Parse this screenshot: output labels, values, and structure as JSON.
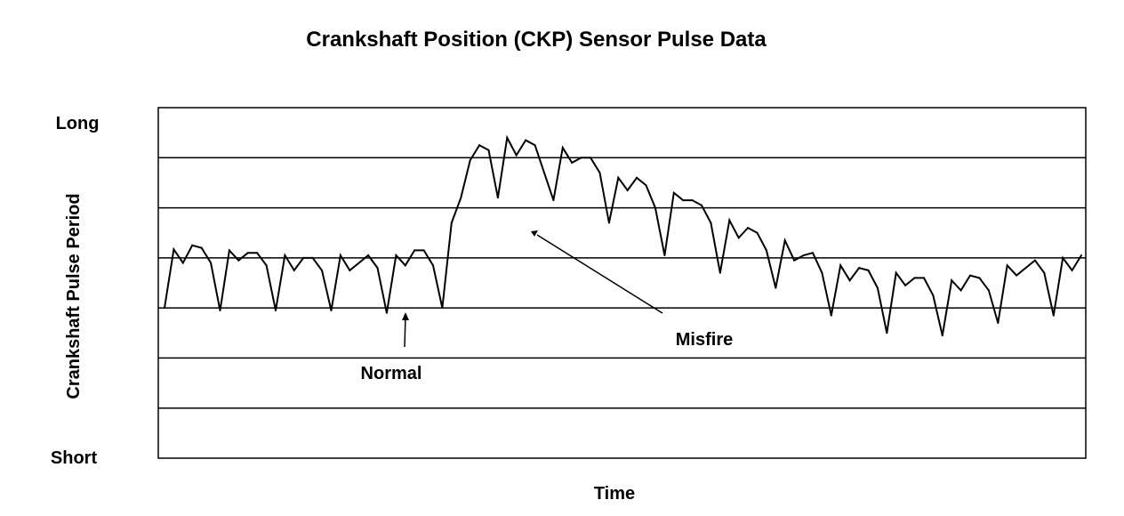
{
  "chart_data": {
    "type": "line",
    "title": "Crankshaft Position (CKP) Sensor Pulse Data",
    "xlabel": "Time",
    "ylabel": "Crankshaft Pulse Period",
    "y_top_label": "Long",
    "y_bottom_label": "Short",
    "ylim": [
      0,
      7
    ],
    "grid": true,
    "legend": "none",
    "annotations": [
      {
        "text": "Normal",
        "x": 45,
        "y": 2.5
      },
      {
        "text": "Misfire",
        "x": 77,
        "y": 2.8
      }
    ],
    "series": [
      {
        "color": "#000000",
        "values": [
          3.0,
          4.17,
          3.9,
          4.25,
          4.2,
          3.9,
          2.95,
          4.15,
          3.95,
          4.1,
          4.1,
          3.85,
          2.95,
          4.05,
          3.75,
          4.0,
          4.0,
          3.75,
          2.95,
          4.05,
          3.75,
          3.9,
          4.05,
          3.8,
          2.9,
          4.05,
          3.85,
          4.15,
          4.15,
          3.85,
          3.0,
          4.7,
          5.2,
          5.95,
          6.25,
          6.15,
          5.2,
          6.4,
          6.05,
          6.35,
          6.25,
          5.7,
          5.15,
          6.2,
          5.9,
          6.0,
          6.0,
          5.7,
          4.7,
          5.6,
          5.35,
          5.6,
          5.45,
          5.0,
          4.05,
          5.3,
          5.15,
          5.15,
          5.05,
          4.7,
          3.7,
          4.75,
          4.4,
          4.6,
          4.5,
          4.15,
          3.4,
          4.35,
          3.95,
          4.05,
          4.1,
          3.7,
          2.85,
          3.85,
          3.55,
          3.8,
          3.75,
          3.4,
          2.5,
          3.7,
          3.45,
          3.6,
          3.6,
          3.25,
          2.45,
          3.55,
          3.35,
          3.65,
          3.6,
          3.35,
          2.7,
          3.85,
          3.65,
          3.8,
          3.95,
          3.7,
          2.85,
          4.0,
          3.75,
          4.05
        ]
      }
    ]
  }
}
